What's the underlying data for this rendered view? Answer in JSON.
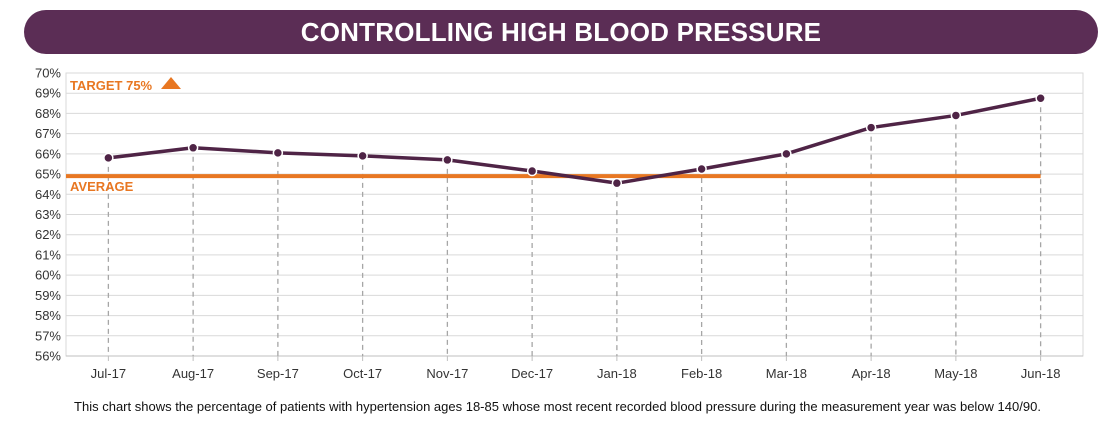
{
  "title": "CONTROLLING HIGH BLOOD PRESSURE",
  "caption": "This chart shows the percentage of patients with hypertension ages 18-85 whose most recent recorded blood pressure during the measurement year was below  140/90.",
  "colors": {
    "title_bg": "#5b2d55",
    "series": "#4f2446",
    "reference": "#e87722",
    "grid": "#d9d9d9",
    "guide": "#a6a6a6"
  },
  "chart_data": {
    "type": "line",
    "categories": [
      "Jul-17",
      "Aug-17",
      "Sep-17",
      "Oct-17",
      "Nov-17",
      "Dec-17",
      "Jan-18",
      "Feb-18",
      "Mar-18",
      "Apr-18",
      "May-18",
      "Jun-18"
    ],
    "series": [
      {
        "values": [
          65.8,
          66.3,
          66.05,
          65.9,
          65.7,
          65.15,
          64.55,
          65.25,
          66.0,
          67.3,
          67.9,
          68.75
        ]
      }
    ],
    "yticks": [
      "56%",
      "57%",
      "58%",
      "59%",
      "60%",
      "61%",
      "62%",
      "63%",
      "64%",
      "65%",
      "66%",
      "67%",
      "68%",
      "69%",
      "70%"
    ],
    "ylim": [
      56,
      70
    ],
    "grid": true,
    "reference_line": {
      "label": "AVERAGE",
      "value": 64.9
    },
    "target_label": "TARGET 75%"
  }
}
